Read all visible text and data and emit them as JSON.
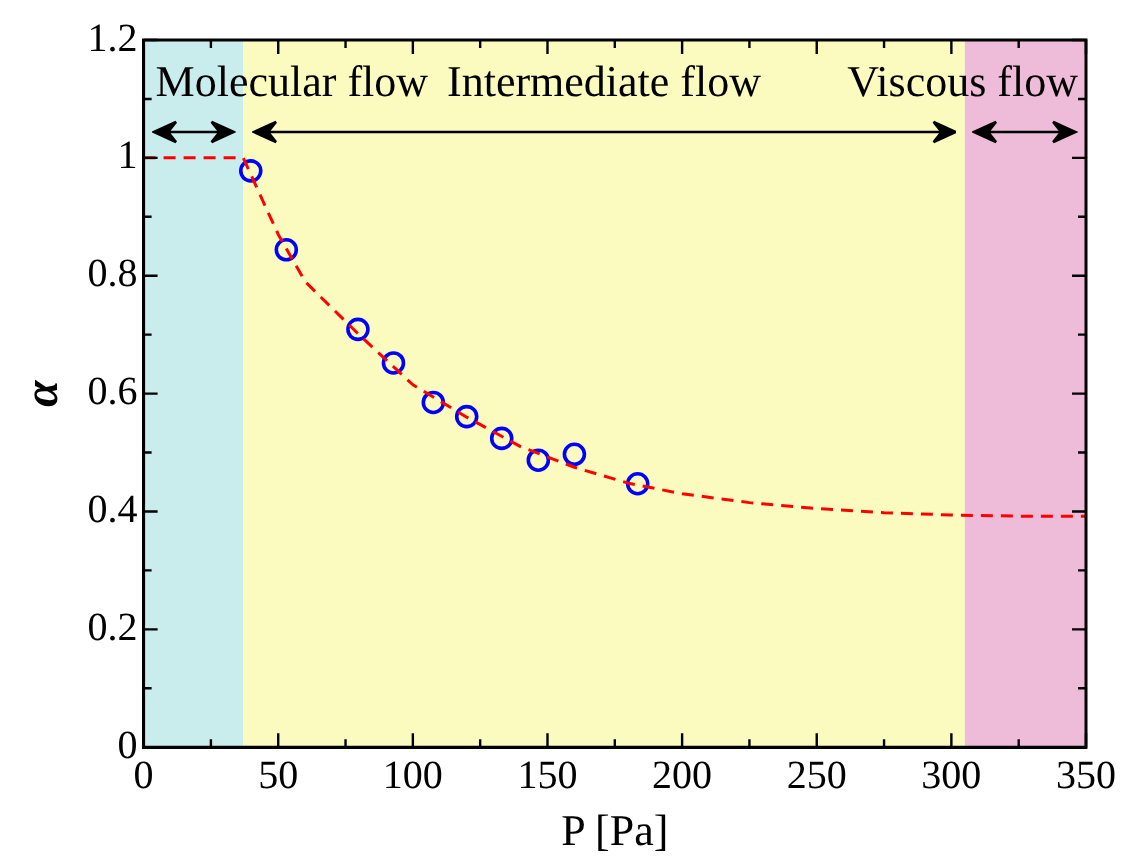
{
  "chart_data": {
    "type": "scatter",
    "xlabel": "P [Pa]",
    "ylabel": "α",
    "xlim": [
      0,
      350
    ],
    "ylim": [
      0,
      1.2
    ],
    "xticks": [
      0,
      {
        "value": 25,
        "label": null
      },
      50,
      {
        "value": 75,
        "label": null
      },
      100,
      {
        "value": 125,
        "label": null
      },
      150,
      {
        "value": 175,
        "label": null
      },
      200,
      {
        "value": 225,
        "label": null
      },
      250,
      {
        "value": 275,
        "label": null
      },
      300,
      {
        "value": 325,
        "label": null
      },
      350
    ],
    "yticks": [
      0,
      {
        "value": 0.1,
        "label": null
      },
      0.2,
      {
        "value": 0.3,
        "label": null
      },
      0.4,
      {
        "value": 0.5,
        "label": null
      },
      0.6,
      {
        "value": 0.7,
        "label": null
      },
      0.8,
      {
        "value": 0.9,
        "label": null
      },
      1,
      {
        "value": 1.1,
        "label": null
      },
      1.2
    ],
    "legend": false,
    "bands": [
      {
        "axis": "x",
        "from": 0,
        "to": 37,
        "label": "Molecular flow",
        "color": "#c9ecec"
      },
      {
        "axis": "x",
        "from": 37,
        "to": 305,
        "label": "Intermediate flow",
        "color": "#fbfbbf"
      },
      {
        "axis": "x",
        "from": 305,
        "to": 350,
        "label": "Viscous flow",
        "color": "#eebbd8"
      }
    ],
    "series": [
      {
        "type": "line",
        "color": "#ff0000",
        "line_style": "dashed",
        "marker": "none",
        "x": [
          0,
          37,
          40,
          50,
          60,
          80,
          100,
          120,
          140,
          160,
          180,
          200,
          225,
          250,
          275,
          300,
          325,
          350
        ],
        "values": [
          1,
          1,
          0.97,
          0.87,
          0.79,
          0.7,
          0.615,
          0.56,
          0.51,
          0.475,
          0.448,
          0.43,
          0.415,
          0.405,
          0.398,
          0.394,
          0.392,
          0.392
        ]
      },
      {
        "type": "scatter",
        "color": "#0000ff",
        "marker": "circle",
        "x": [
          39.8,
          53,
          79.6,
          92.8,
          107.6,
          120,
          133,
          146.6,
          160,
          183.5
        ],
        "values": [
          0.978,
          0.844,
          0.709,
          0.652,
          0.585,
          0.561,
          0.524,
          0.487,
          0.497,
          0.447
        ]
      }
    ]
  }
}
